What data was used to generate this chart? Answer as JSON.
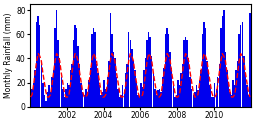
{
  "title": "",
  "ylabel": "Monthly Rainfall (mm)",
  "xlabel": "",
  "ylim": [
    0,
    85
  ],
  "bar_color": "#0000ee",
  "line_color": "#ff0000",
  "background_color": "#ffffff",
  "x_ticks": [
    "2002",
    "2004",
    "2006",
    "2008",
    "2010"
  ],
  "y_ticks": [
    0,
    20,
    40,
    60,
    80
  ],
  "long_term_avg": [
    8,
    10,
    18,
    28,
    38,
    44,
    42,
    38,
    28,
    20,
    12,
    8
  ],
  "bar_values": [
    25,
    15,
    20,
    30,
    70,
    75,
    68,
    35,
    20,
    10,
    5,
    12,
    18,
    12,
    25,
    30,
    65,
    80,
    55,
    40,
    25,
    15,
    8,
    15,
    20,
    18,
    30,
    35,
    55,
    68,
    65,
    50,
    35,
    20,
    12,
    10,
    15,
    12,
    22,
    32,
    60,
    65,
    62,
    35,
    28,
    18,
    10,
    12,
    22,
    15,
    25,
    38,
    78,
    60,
    45,
    40,
    25,
    15,
    8,
    10,
    18,
    14,
    28,
    35,
    62,
    55,
    48,
    38,
    30,
    20,
    10,
    8,
    20,
    16,
    30,
    40,
    55,
    62,
    58,
    42,
    28,
    15,
    10,
    14,
    15,
    12,
    25,
    32,
    60,
    65,
    60,
    45,
    32,
    18,
    8,
    10,
    22,
    18,
    28,
    35,
    55,
    58,
    55,
    40,
    25,
    15,
    10,
    12,
    18,
    14,
    22,
    30,
    60,
    70,
    65,
    38,
    28,
    18,
    8,
    8,
    20,
    15,
    25,
    35,
    65,
    75,
    80,
    45,
    30,
    20,
    12,
    10,
    22,
    18,
    30,
    38,
    60,
    68,
    70,
    42,
    28,
    18,
    10,
    78
  ]
}
